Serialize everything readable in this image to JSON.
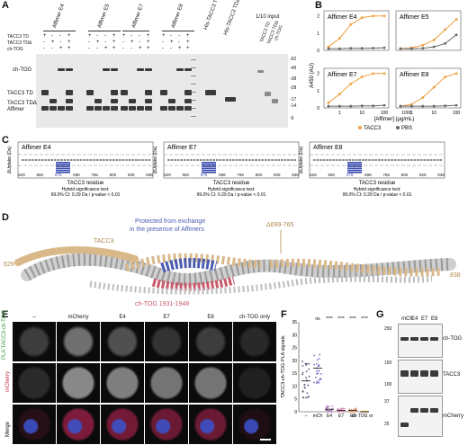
{
  "panelA": {
    "letter": "A",
    "lane_groups": [
      "Affimer E4",
      "Affimer E5",
      "Affimer E7",
      "Affimer E8"
    ],
    "his_labels": [
      "His-TACC3 TD",
      "His-TACC3 TDΔ"
    ],
    "input_label": "1/10 input",
    "input_lanes": [
      "TACC3 TD",
      "TACC3 TDΔ",
      "ch-TOG"
    ],
    "row_labels": [
      "TACC3 TD",
      "TACC3 TDΔ",
      "ch-TOG"
    ],
    "row_signs": [
      [
        "+",
        "-",
        "-",
        "+",
        "+",
        "-",
        "-",
        "+",
        "+",
        "-",
        "-",
        "+",
        "+",
        "-",
        "-",
        "+"
      ],
      [
        "-",
        "+",
        "-",
        "+",
        "-",
        "+",
        "-",
        "+",
        "-",
        "+",
        "-",
        "+",
        "-",
        "+",
        "-",
        "+"
      ],
      [
        "-",
        "-",
        "+",
        "+",
        "-",
        "-",
        "+",
        "+",
        "-",
        "-",
        "+",
        "+",
        "-",
        "-",
        "+",
        "+"
      ]
    ],
    "band_labels": [
      "ch-TOG",
      "TACC3 TD",
      "TACC3 TDΔ",
      "Affimer"
    ],
    "markers": [
      "-62",
      "-49",
      "-38",
      "-28",
      "-17",
      "-14",
      "-6"
    ]
  },
  "panelB": {
    "letter": "B",
    "ylabel": "A450 (AU)",
    "xlabel": "[Affimer] (μg/mL)",
    "legend": [
      "TACC3",
      "PBS"
    ],
    "colors": {
      "tacc3": "#f0a040",
      "pbs": "#666666"
    },
    "x_ticks": [
      "1",
      "10",
      "100",
      "1000"
    ],
    "y_ticks": [
      "0",
      "1",
      "2"
    ],
    "charts": [
      {
        "title": "Affimer E4",
        "tacc3": [
          0.2,
          0.7,
          1.5,
          1.9,
          2.0,
          2.0
        ],
        "pbs": [
          0.1,
          0.1,
          0.12,
          0.12,
          0.13,
          0.15
        ]
      },
      {
        "title": "Affimer E5",
        "tacc3": [
          0.1,
          0.15,
          0.3,
          0.6,
          1.2,
          1.8
        ],
        "pbs": [
          0.1,
          0.1,
          0.12,
          0.2,
          0.4,
          0.9
        ]
      },
      {
        "title": "Affimer E7",
        "tacc3": [
          0.3,
          0.8,
          1.4,
          1.8,
          2.0,
          2.0
        ],
        "pbs": [
          0.1,
          0.1,
          0.1,
          0.12,
          0.12,
          0.15
        ]
      },
      {
        "title": "Affimer E8",
        "tacc3": [
          0.1,
          0.2,
          0.6,
          1.2,
          1.8,
          2.0
        ],
        "pbs": [
          0.1,
          0.1,
          0.1,
          0.1,
          0.12,
          0.15
        ]
      }
    ]
  },
  "panelC": {
    "letter": "C",
    "ylabel": "ΔUptake (Da)",
    "xlabel": "TACC3 residue",
    "x_ticks": [
      "629",
      "650",
      "675",
      "698",
      "766",
      "800",
      "825",
      "838"
    ],
    "y_ticks": [
      "1",
      "0",
      "-1"
    ],
    "highlight": "675",
    "note1": "Hybrid significance test:",
    "note2": "99.0% CI: 0.29 Da / p-value < 0.01",
    "plots": [
      {
        "title": "Affimer E4"
      },
      {
        "title": "Affimer E7"
      },
      {
        "title": "Affimer E8"
      }
    ]
  },
  "panelD": {
    "letter": "D",
    "protected_label_1": "Protected from exchange",
    "protected_label_2": "in the presence of Affimers",
    "delta_label": "Δ699-765",
    "tacc3_label": "TACC3",
    "chtog_label": "ch-TOG 1931-1948",
    "left_res": "629",
    "right_res": "838",
    "colors": {
      "tacc3": "#d9b88a",
      "protected": "#4a5bb0",
      "chtog": "#c85a6a"
    }
  },
  "panelE": {
    "letter": "E",
    "columns": [
      "–",
      "mCherry",
      "E4",
      "E7",
      "E8",
      "ch-TOG only"
    ],
    "row_labels": [
      "PLA TACC3-ch-TOG",
      "mCherry",
      "Merge"
    ]
  },
  "panelF": {
    "letter": "F",
    "ylabel": "TACC3-ch-TOG PLA signals",
    "categories": [
      "–",
      "mCh",
      "E4",
      "E7",
      "E8",
      "ch-TOG only"
    ],
    "significance": [
      "",
      "ns",
      "****",
      "****",
      "****",
      "****"
    ],
    "y_ticks": [
      "0",
      "5",
      "10",
      "15",
      "20",
      "25",
      "30",
      "35"
    ],
    "ylim": [
      0,
      35
    ],
    "medians": [
      12,
      17,
      1,
      0.5,
      0.5,
      0
    ],
    "colors": [
      "#555577",
      "#7a6cc0",
      "#b080c0",
      "#d68ab0",
      "#e0a080",
      "#e8c070"
    ]
  },
  "panelG": {
    "letter": "G",
    "columns": [
      "mCh",
      "E4",
      "E7",
      "E8"
    ],
    "markers": [
      "250",
      "150",
      "100",
      "37",
      "25"
    ],
    "labels": [
      "ch-TOG",
      "TACC3",
      "mCherry"
    ]
  }
}
